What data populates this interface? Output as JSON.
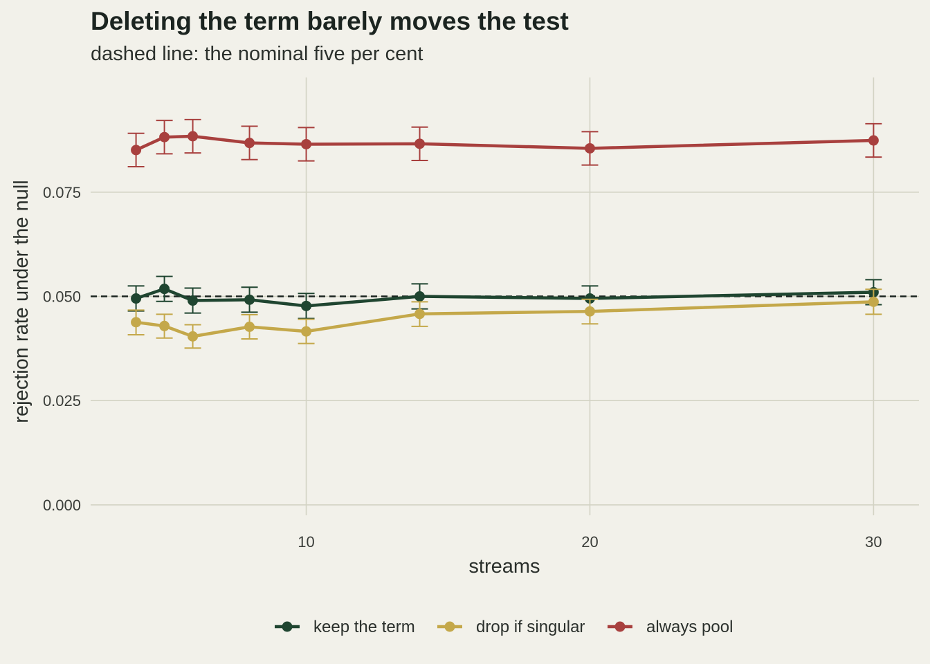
{
  "title": "Deleting the term barely moves the test",
  "subtitle": "dashed line: the nominal five per cent",
  "chart_data": {
    "type": "line",
    "title": "Deleting the term barely moves the test",
    "subtitle": "dashed line: the nominal five per cent",
    "xlabel": "streams",
    "ylabel": "rejection rate under the null",
    "xlim": [
      2.4,
      31.6
    ],
    "ylim": [
      -0.0025,
      0.1025
    ],
    "x_ticks": [
      10,
      20,
      30
    ],
    "x_tick_labels": [
      "10",
      "20",
      "30"
    ],
    "y_ticks": [
      0,
      0.025,
      0.05,
      0.075
    ],
    "y_tick_labels": [
      "0.000",
      "0.025",
      "0.050",
      "0.075"
    ],
    "grid": true,
    "legend_position": "bottom",
    "reference_line": {
      "y": 0.05,
      "style": "dashed",
      "color": "#1b2420"
    },
    "x": [
      4,
      5,
      6,
      8,
      10,
      14,
      20,
      30
    ],
    "series": [
      {
        "name": "keep the term",
        "color": "#1f4530",
        "values": [
          0.0495,
          0.0518,
          0.049,
          0.0492,
          0.0477,
          0.05,
          0.0495,
          0.051
        ],
        "err_low": [
          0.0465,
          0.0488,
          0.046,
          0.0462,
          0.0447,
          0.047,
          0.0465,
          0.048
        ],
        "err_high": [
          0.0525,
          0.0548,
          0.052,
          0.0522,
          0.0507,
          0.053,
          0.0525,
          0.054
        ]
      },
      {
        "name": "drop if singular",
        "color": "#c4a84a",
        "values": [
          0.0438,
          0.0429,
          0.0404,
          0.0427,
          0.0416,
          0.0458,
          0.0464,
          0.0487
        ],
        "err_low": [
          0.0408,
          0.04,
          0.0376,
          0.0398,
          0.0387,
          0.0428,
          0.0434,
          0.0457
        ],
        "err_high": [
          0.0467,
          0.0457,
          0.0432,
          0.0456,
          0.0445,
          0.0487,
          0.0493,
          0.0517
        ]
      },
      {
        "name": "always pool",
        "color": "#a8403e",
        "values": [
          0.0851,
          0.0882,
          0.0884,
          0.0868,
          0.0865,
          0.0866,
          0.0855,
          0.0874
        ],
        "err_low": [
          0.0811,
          0.0842,
          0.0844,
          0.0828,
          0.0825,
          0.0826,
          0.0815,
          0.0834
        ],
        "err_high": [
          0.0891,
          0.0922,
          0.0924,
          0.0908,
          0.0905,
          0.0906,
          0.0895,
          0.0914
        ]
      }
    ]
  }
}
